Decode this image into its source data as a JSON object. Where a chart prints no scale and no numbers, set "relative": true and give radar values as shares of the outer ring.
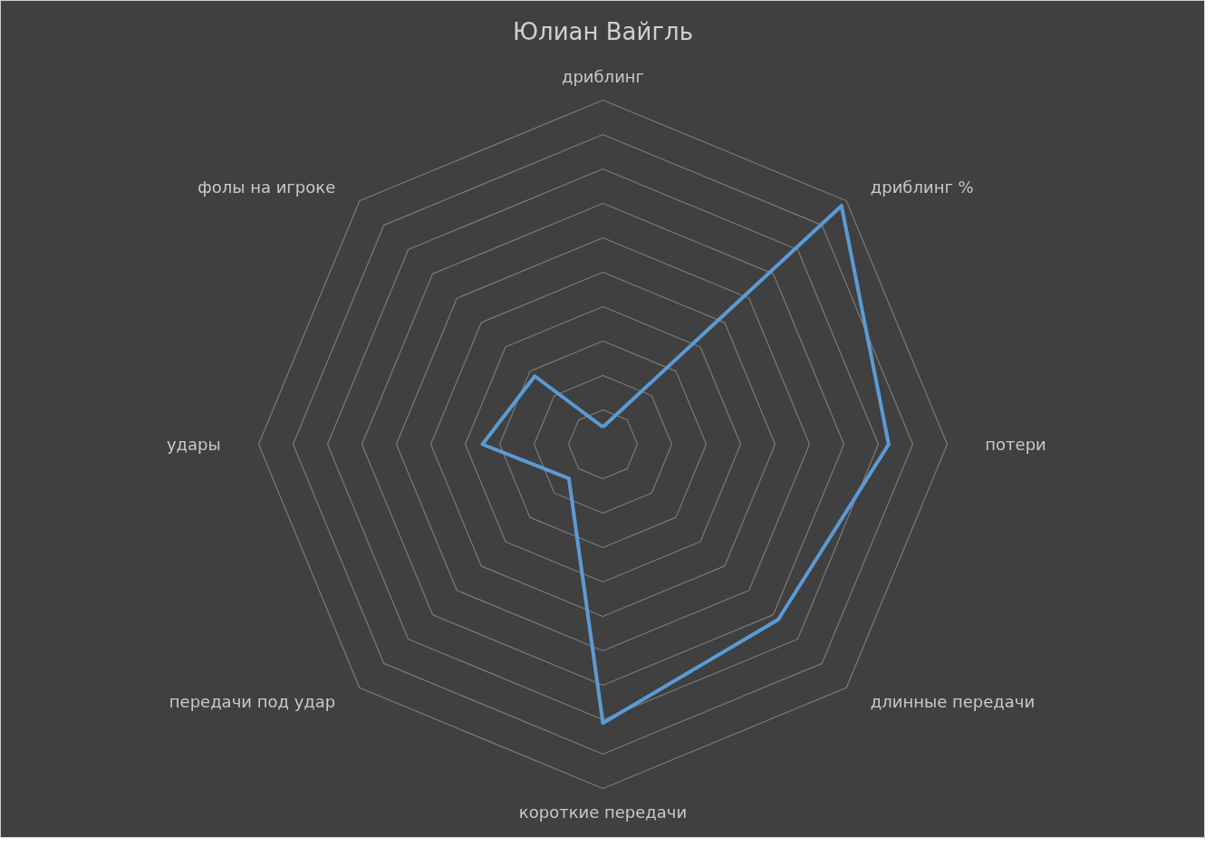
{
  "chart_data": {
    "type": "radar",
    "title": "Юлиан Вайгль",
    "relative": true,
    "grid": true,
    "categories": [
      "дриблинг",
      "дриблинг %",
      "потери",
      "длинные передачи",
      "короткие передачи",
      "передачи под удар",
      "удары",
      "фолы на игроке"
    ],
    "series": [
      {
        "color": "#5b9bd5",
        "values": [
          0.05,
          0.98,
          0.83,
          0.72,
          0.81,
          0.14,
          0.35,
          0.28
        ]
      }
    ]
  }
}
